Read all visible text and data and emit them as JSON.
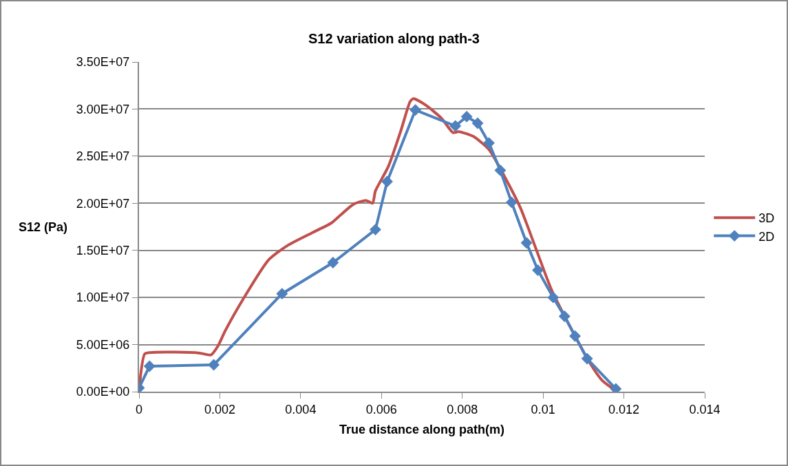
{
  "chart_data": {
    "type": "line",
    "title": "S12 variation along path-3",
    "xlabel": "True distance along path(m)",
    "ylabel": "S12 (Pa)",
    "xlim": [
      0,
      0.014
    ],
    "xticks": [
      0,
      0.002,
      0.004,
      0.006,
      0.008,
      0.01,
      0.012,
      0.014
    ],
    "ylim": [
      0,
      35000000
    ],
    "yticks": [
      {
        "value": 0,
        "label": "0.00E+00"
      },
      {
        "value": 5000000,
        "label": "5.00E+06"
      },
      {
        "value": 10000000,
        "label": "1.00E+07"
      },
      {
        "value": 15000000,
        "label": "1.50E+07"
      },
      {
        "value": 20000000,
        "label": "2.00E+07"
      },
      {
        "value": 25000000,
        "label": "2.50E+07"
      },
      {
        "value": 30000000,
        "label": "3.00E+07"
      },
      {
        "value": 35000000,
        "label": "3.50E+07"
      }
    ],
    "grid": "y",
    "legend": "right",
    "line_style": "solid",
    "series": [
      {
        "name": "3D",
        "color": "#c0504d",
        "marker": "none",
        "x": [
          0,
          0.00014,
          0.00028,
          0.00087,
          0.0015,
          0.00178,
          0.00196,
          0.00212,
          0.00258,
          0.00321,
          0.00367,
          0.0043,
          0.00476,
          0.005,
          0.00531,
          0.00562,
          0.00578,
          0.00585,
          0.00617,
          0.00648,
          0.00671,
          0.00679,
          0.0071,
          0.00749,
          0.00777,
          0.00791,
          0.00827,
          0.00866,
          0.00905,
          0.00944,
          0.00983,
          0.01022,
          0.01115,
          0.01146,
          0.0117
        ],
        "values": [
          200000,
          4000000,
          4150000,
          4200000,
          4100000,
          3900000,
          4900000,
          6350000,
          9850000,
          14000000,
          15500000,
          16900000,
          17900000,
          18800000,
          19900000,
          20300000,
          20000000,
          21300000,
          23900000,
          27700000,
          30800000,
          31100000,
          30400000,
          29000000,
          27500000,
          27600000,
          27100000,
          25700000,
          22800000,
          19500000,
          15100000,
          10700000,
          3100000,
          1200000,
          400000
        ]
      },
      {
        "name": "2D",
        "color": "#4f81bd",
        "marker": "diamond",
        "x": [
          0,
          0.00026,
          0.00185,
          0.00354,
          0.0048,
          0.00585,
          0.00614,
          0.00684,
          0.00783,
          0.00811,
          0.00838,
          0.00866,
          0.00894,
          0.00922,
          0.00959,
          0.00987,
          0.01025,
          0.01053,
          0.01079,
          0.01109,
          0.0118
        ],
        "values": [
          400000,
          2700000,
          2850000,
          10400000,
          13700000,
          17200000,
          22300000,
          29900000,
          28200000,
          29200000,
          28500000,
          26400000,
          23500000,
          20100000,
          15800000,
          12900000,
          10000000,
          8000000,
          5900000,
          3500000,
          300000
        ]
      }
    ]
  }
}
